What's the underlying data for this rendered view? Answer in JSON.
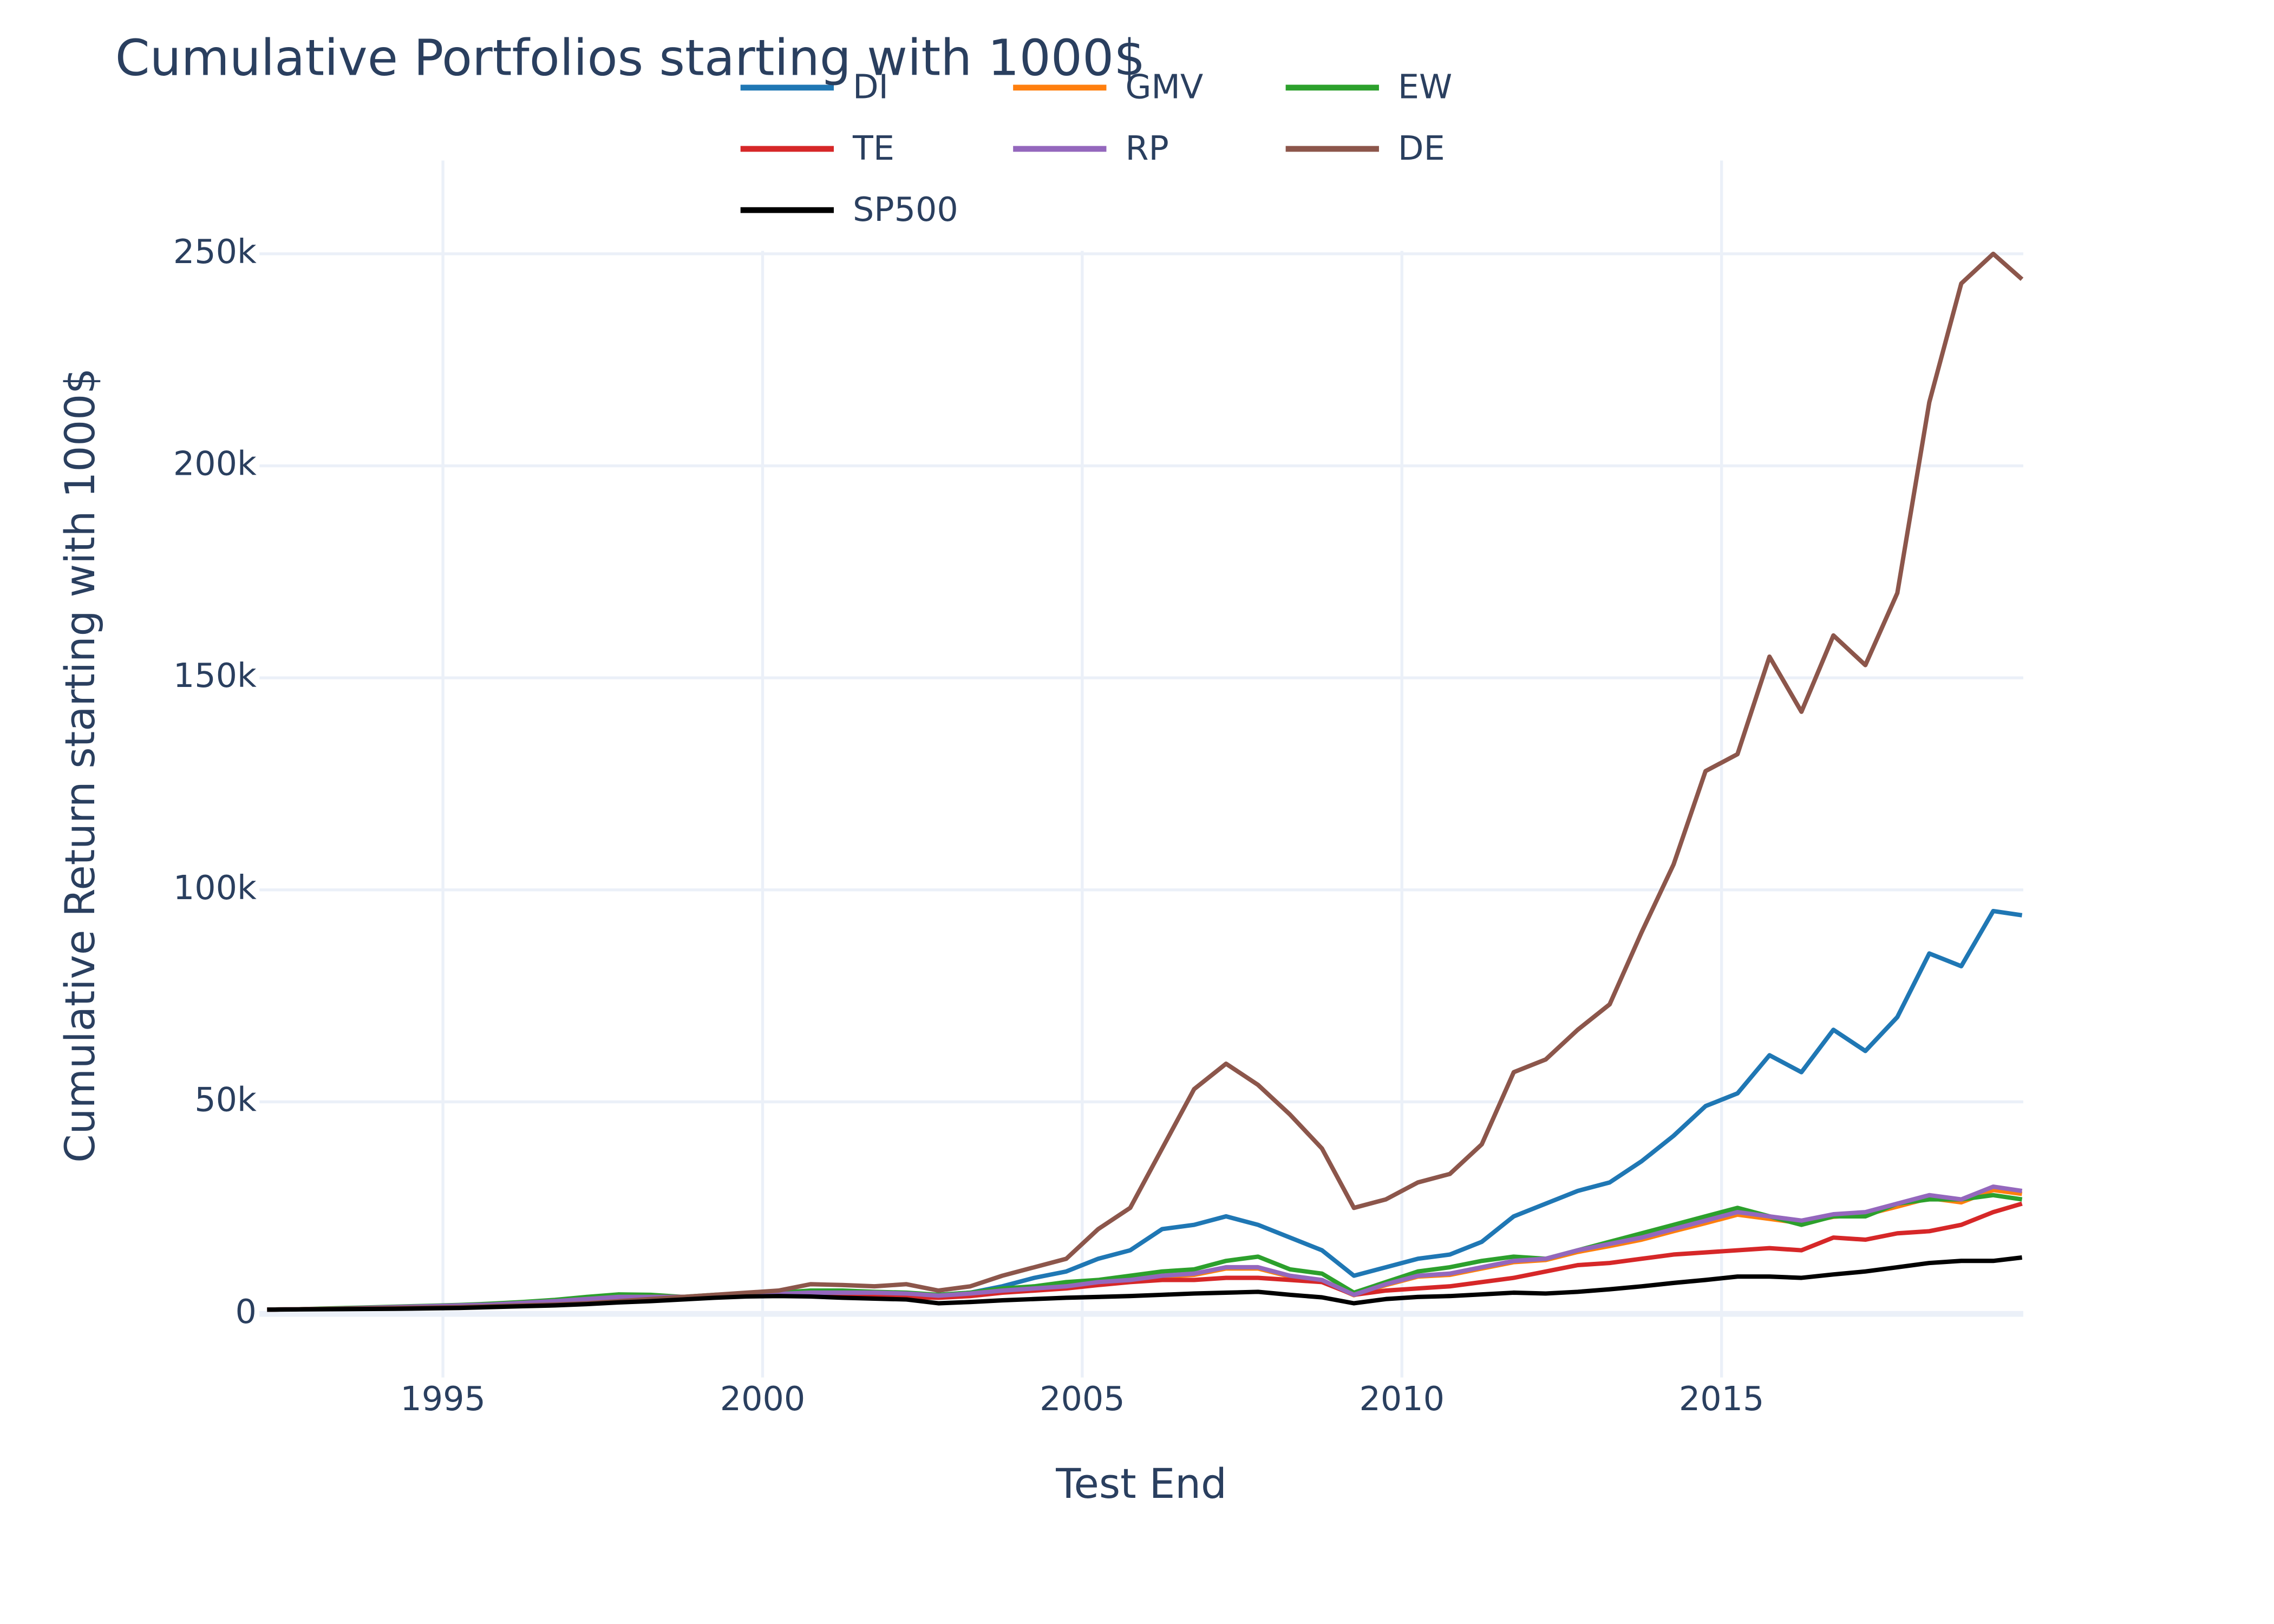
{
  "chart_data": {
    "type": "line",
    "title": "Cumulative Portfolios starting with 1000$",
    "x_label": "Test End",
    "y_label": "Cumulative Return starting with 1000$",
    "x": [
      1992.25,
      1992.75,
      1993.25,
      1993.75,
      1994.25,
      1994.75,
      1995.25,
      1995.75,
      1996.25,
      1996.75,
      1997.25,
      1997.75,
      1998.25,
      1998.75,
      1999.25,
      1999.75,
      2000.25,
      2000.75,
      2001.25,
      2001.75,
      2002.25,
      2002.75,
      2003.25,
      2003.75,
      2004.25,
      2004.75,
      2005.25,
      2005.75,
      2006.25,
      2006.75,
      2007.25,
      2007.75,
      2008.25,
      2008.75,
      2009.25,
      2009.75,
      2010.25,
      2010.75,
      2011.25,
      2011.75,
      2012.25,
      2012.75,
      2013.25,
      2013.75,
      2014.25,
      2014.75,
      2015.25,
      2015.75,
      2016.25,
      2016.75,
      2017.25,
      2017.75,
      2018.25,
      2018.75,
      2019.25,
      2019.7
    ],
    "series": [
      {
        "name": "DI",
        "color": "#1f77b4",
        "values": [
          1000,
          1100,
          1200,
          1300,
          1400,
          1500,
          1600,
          1800,
          2000,
          2200,
          2500,
          3000,
          3500,
          4000,
          4200,
          4500,
          4800,
          5000,
          5000,
          4800,
          4800,
          4500,
          5000,
          6500,
          8500,
          10000,
          13000,
          15000,
          20000,
          21000,
          23000,
          21000,
          18000,
          15000,
          9000,
          11000,
          13000,
          14000,
          17000,
          23000,
          26000,
          29000,
          31000,
          36000,
          42000,
          49000,
          52000,
          61000,
          57000,
          67000,
          62000,
          70000,
          85000,
          82000,
          95000,
          94000
        ]
      },
      {
        "name": "GMV",
        "color": "#ff7f0e",
        "values": [
          1000,
          1100,
          1200,
          1350,
          1550,
          1750,
          1950,
          2150,
          2500,
          2900,
          3400,
          3900,
          3900,
          3900,
          4200,
          4400,
          4600,
          4900,
          4900,
          4900,
          4700,
          4200,
          4700,
          5400,
          5800,
          6300,
          7300,
          7800,
          8800,
          9200,
          10700,
          10700,
          8800,
          7800,
          4400,
          6800,
          8800,
          9200,
          10700,
          12200,
          12700,
          14600,
          16000,
          17500,
          19500,
          21400,
          23400,
          22400,
          21400,
          22900,
          23400,
          25300,
          27300,
          26300,
          29200,
          28300
        ]
      },
      {
        "name": "EW",
        "color": "#2ca02c",
        "values": [
          1000,
          1100,
          1300,
          1500,
          1700,
          1900,
          2100,
          2400,
          2800,
          3300,
          4000,
          4600,
          4500,
          4000,
          4500,
          4800,
          5000,
          5500,
          5500,
          5200,
          5000,
          4500,
          5000,
          6000,
          6500,
          7500,
          8000,
          9000,
          10000,
          10500,
          12500,
          13500,
          10500,
          9500,
          5000,
          7500,
          10000,
          11000,
          12500,
          13500,
          13000,
          15000,
          17000,
          19000,
          21000,
          23000,
          25000,
          23000,
          21000,
          23000,
          23000,
          26000,
          27000,
          27000,
          28000,
          27000
        ]
      },
      {
        "name": "TE",
        "color": "#d62728",
        "values": [
          1000,
          1100,
          1200,
          1300,
          1500,
          1700,
          1900,
          2100,
          2400,
          2800,
          3300,
          3700,
          4000,
          4000,
          4100,
          4300,
          4500,
          4300,
          4200,
          4000,
          4000,
          3800,
          4200,
          5000,
          5500,
          6000,
          6800,
          7500,
          8000,
          8000,
          8500,
          8500,
          8000,
          7500,
          4500,
          5500,
          6000,
          6500,
          7500,
          8500,
          10000,
          11500,
          12000,
          13000,
          14000,
          14500,
          15000,
          15500,
          15000,
          18000,
          17500,
          19000,
          19500,
          21000,
          24000,
          26000
        ]
      },
      {
        "name": "RP",
        "color": "#9467bd",
        "values": [
          1000,
          1100,
          1200,
          1400,
          1600,
          1800,
          2000,
          2200,
          2600,
          3000,
          3500,
          4000,
          4000,
          4000,
          4300,
          4500,
          4700,
          5000,
          5000,
          5000,
          4800,
          4300,
          4800,
          5500,
          6000,
          6500,
          7500,
          8000,
          9000,
          9500,
          11000,
          11000,
          9000,
          8000,
          4500,
          7000,
          9000,
          9500,
          11000,
          12500,
          13000,
          15000,
          16500,
          18000,
          20000,
          22000,
          24000,
          23000,
          22000,
          23500,
          24000,
          26000,
          28000,
          27000,
          30000,
          29000
        ]
      },
      {
        "name": "DE",
        "color": "#8c564b",
        "values": [
          1000,
          1100,
          1200,
          1300,
          1400,
          1500,
          1600,
          1800,
          2000,
          2200,
          2500,
          3000,
          3500,
          4000,
          4500,
          5000,
          5500,
          7000,
          6800,
          6500,
          7000,
          5500,
          6500,
          9000,
          11000,
          13000,
          20000,
          25000,
          39000,
          53000,
          59000,
          54000,
          47000,
          39000,
          25000,
          27000,
          31000,
          33000,
          40000,
          57000,
          60000,
          67000,
          73000,
          90000,
          106000,
          128000,
          132000,
          155000,
          142000,
          160000,
          153000,
          170000,
          215000,
          243000,
          250000,
          244000
        ]
      },
      {
        "name": "SP500",
        "color": "#000000",
        "values": [
          1000,
          1050,
          1100,
          1150,
          1200,
          1300,
          1400,
          1600,
          1800,
          2000,
          2300,
          2700,
          3000,
          3400,
          3800,
          4100,
          4200,
          4100,
          3800,
          3600,
          3400,
          2500,
          2800,
          3200,
          3500,
          3800,
          4000,
          4200,
          4500,
          4800,
          5000,
          5200,
          4500,
          3900,
          2500,
          3500,
          4000,
          4200,
          4600,
          5000,
          4800,
          5200,
          5800,
          6500,
          7300,
          8000,
          8800,
          8800,
          8500,
          9300,
          10000,
          11000,
          12000,
          12500,
          12500,
          13300
        ]
      }
    ],
    "xlim": [
      1992.13,
      2019.72
    ],
    "ylim": [
      -15000,
      272000
    ],
    "xticks": [
      1995,
      2000,
      2005,
      2010,
      2015
    ],
    "yticks": [
      0,
      {
        "value": 50000,
        "label": "50k"
      },
      {
        "value": 100000,
        "label": "100k"
      },
      {
        "value": 150000,
        "label": "150k"
      },
      {
        "value": 200000,
        "label": "200k"
      },
      {
        "value": 250000,
        "label": "250k"
      }
    ],
    "grid": true
  }
}
